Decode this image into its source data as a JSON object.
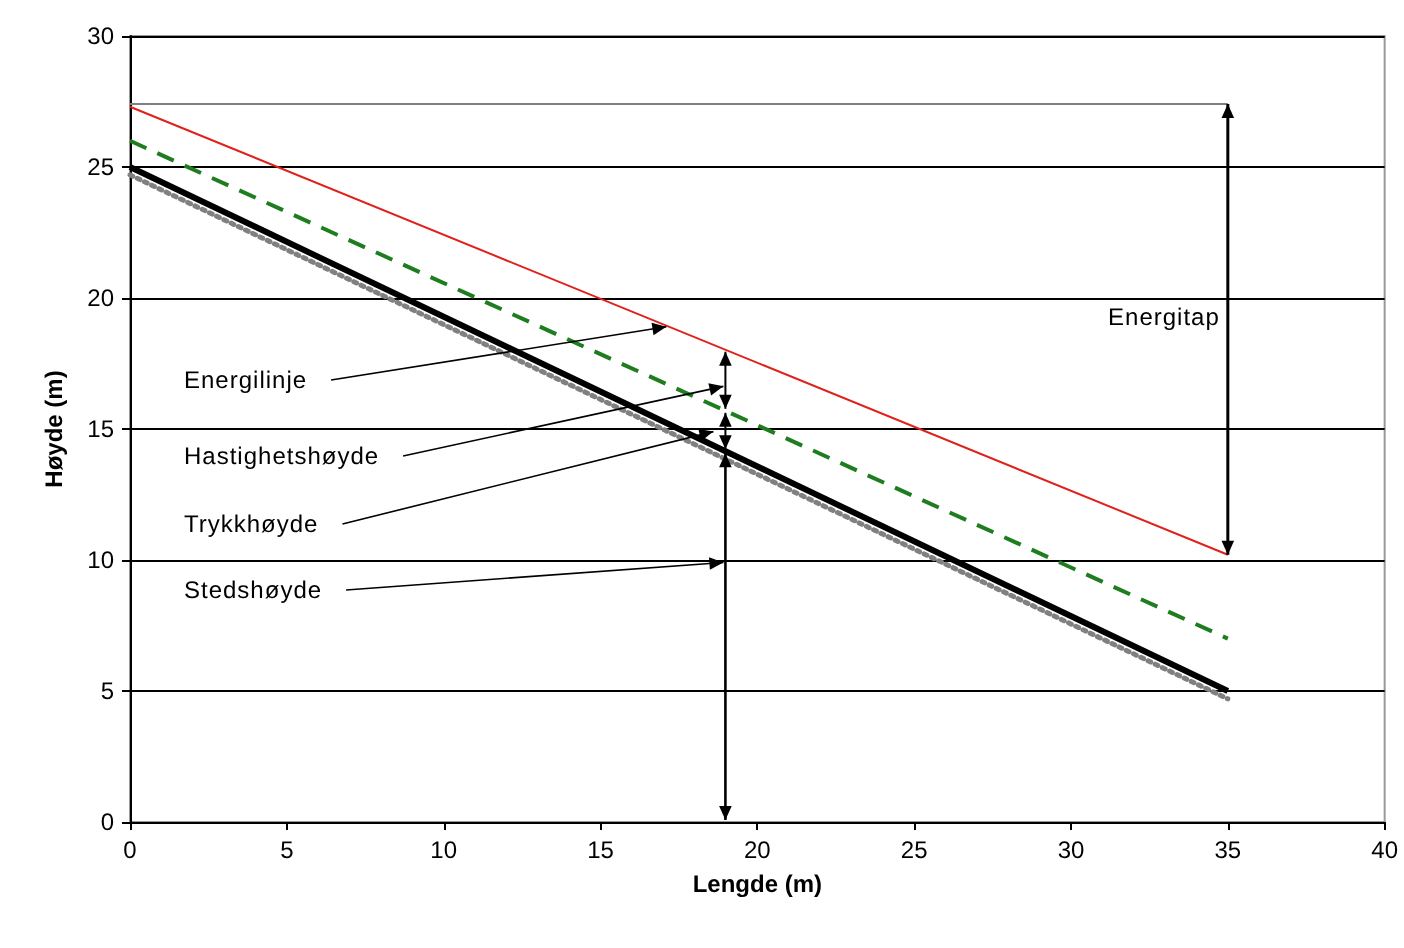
{
  "chart_data": {
    "type": "line",
    "xlabel": "Lengde (m)",
    "ylabel": "Høyde (m)",
    "x": [
      0,
      35
    ],
    "series": [
      {
        "color": "#808080",
        "values": [
          27.4,
          27.4
        ],
        "line_style": "solid"
      },
      {
        "color": "#e0201b",
        "values": [
          27.3,
          10.2
        ],
        "line_style": "solid"
      },
      {
        "color": "#1e7d1e",
        "values": [
          26,
          7
        ],
        "line_style": "dashed"
      },
      {
        "color": "#000000",
        "values": [
          25,
          5
        ],
        "line_style": "solid"
      },
      {
        "color": "#808080",
        "values": [
          24.7,
          4.7
        ],
        "line_style": "dotted"
      }
    ],
    "annotations": [
      {
        "text": "Energilinje",
        "x": 17.1,
        "y": 18.9
      },
      "Hastighetshøyde",
      {
        "text": "Trykkhøyde",
        "x": 18.6,
        "y": 14.9
      },
      "Stedshøyde",
      "Energitap"
    ],
    "xlim": [
      0,
      40
    ],
    "xticks": [
      0,
      5,
      10,
      15,
      20,
      25,
      30,
      35,
      40
    ],
    "ylim": [
      0,
      30
    ],
    "yticks": [
      0,
      5,
      10,
      15,
      20,
      25,
      30
    ],
    "grid": "y",
    "marker": "none"
  }
}
